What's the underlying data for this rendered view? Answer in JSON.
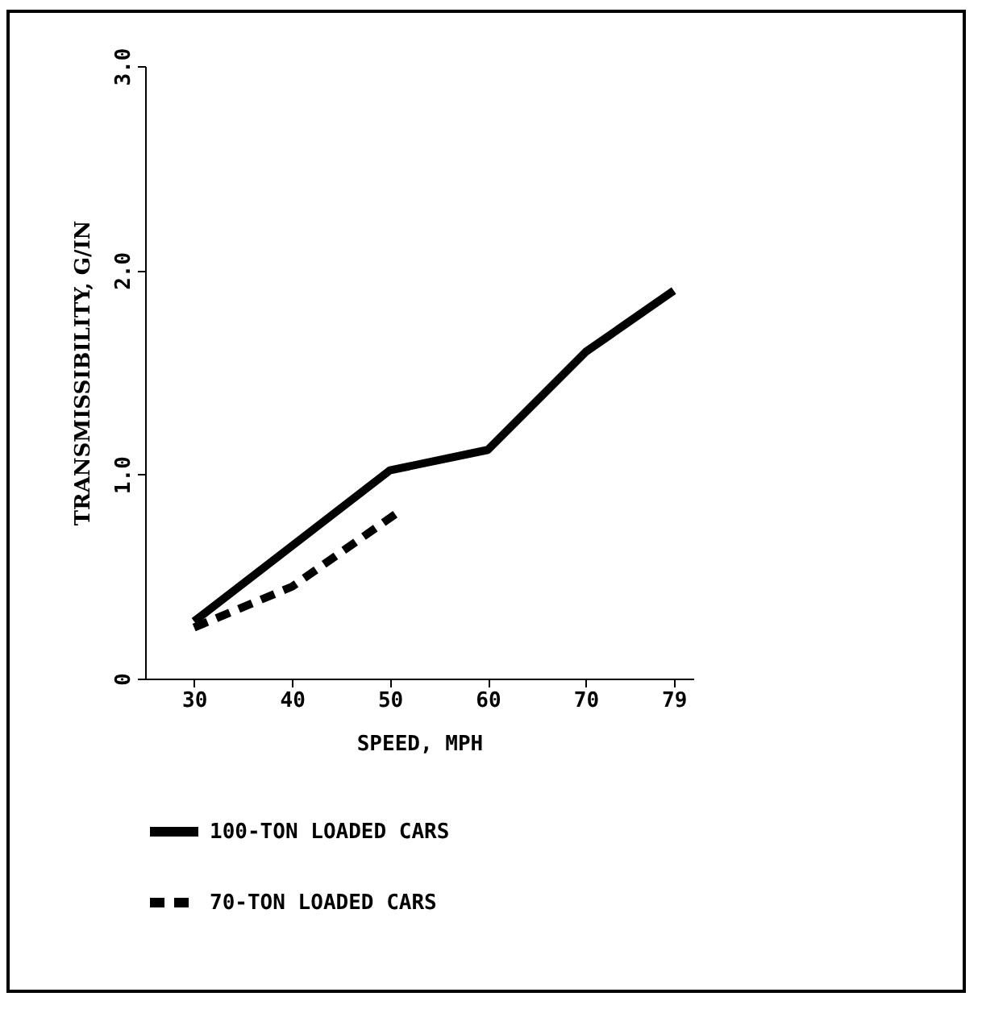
{
  "chart_data": {
    "type": "line",
    "xlabel": "SPEED, MPH",
    "ylabel": "TRANSMISSIBILITY, G/IN",
    "xlim": [
      25,
      81
    ],
    "xticks": [
      30,
      40,
      50,
      60,
      70,
      79
    ],
    "ylim": [
      0,
      3
    ],
    "yticks": [
      0,
      {
        "value": 1,
        "label": "1.0"
      },
      {
        "value": 2,
        "label": "2.0"
      },
      {
        "value": 3,
        "label": "3.0"
      }
    ],
    "grid": false,
    "legend": "bottom",
    "marker": "none",
    "series": [
      {
        "name": "100-TON LOADED CARS",
        "color": "#000000",
        "line_style": "solid",
        "x": [
          30,
          40,
          50,
          60,
          70,
          79
        ],
        "values": [
          0.28,
          0.65,
          1.02,
          1.12,
          1.6,
          1.9
        ]
      },
      {
        "name": "70-TON LOADED CARS",
        "color": "#000000",
        "line_style": "dashed",
        "x": [
          30,
          40,
          51
        ],
        "values": [
          0.25,
          0.45,
          0.82
        ]
      }
    ]
  }
}
